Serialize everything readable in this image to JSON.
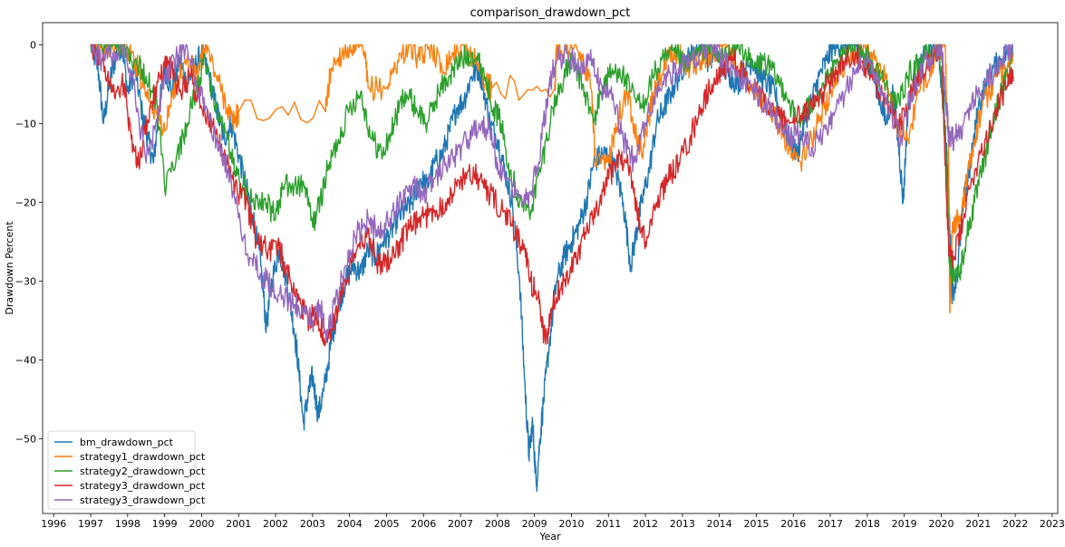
{
  "chart_data": {
    "type": "line",
    "title": "comparison_drawdown_pct",
    "xlabel": "Year",
    "ylabel": "Drawdown Percent",
    "xlim": [
      1995.7,
      2023.15
    ],
    "ylim": [
      -59.5,
      2.8
    ],
    "x_ticks": [
      "1996",
      "1997",
      "1998",
      "1999",
      "2000",
      "2001",
      "2002",
      "2003",
      "2004",
      "2005",
      "2006",
      "2007",
      "2008",
      "2009",
      "2010",
      "2011",
      "2012",
      "2013",
      "2014",
      "2015",
      "2016",
      "2017",
      "2018",
      "2019",
      "2020",
      "2021",
      "2022",
      "2023"
    ],
    "y_ticks": [
      "0",
      "−10",
      "−20",
      "−30",
      "−40",
      "−50"
    ],
    "legend_position": "lower-left",
    "grid": false,
    "series": [
      {
        "name": "bm_drawdown_pct",
        "color": "#1f77b4",
        "x": [
          1997.0,
          1997.2,
          1997.35,
          1997.5,
          1997.7,
          1997.85,
          1998.0,
          1998.2,
          1998.4,
          1998.55,
          1998.7,
          1998.85,
          1999.0,
          1999.2,
          1999.4,
          1999.6,
          1999.8,
          2000.0,
          2000.2,
          2000.4,
          2000.6,
          2000.8,
          2001.0,
          2001.2,
          2001.4,
          2001.6,
          2001.75,
          2001.9,
          2002.1,
          2002.3,
          2002.5,
          2002.6,
          2002.75,
          2002.9,
          2003.0,
          2003.15,
          2003.3,
          2003.5,
          2003.7,
          2003.9,
          2004.1,
          2004.3,
          2004.5,
          2004.7,
          2004.9,
          2005.1,
          2005.3,
          2005.5,
          2005.7,
          2005.9,
          2006.1,
          2006.3,
          2006.5,
          2006.7,
          2006.9,
          2007.1,
          2007.3,
          2007.5,
          2007.6,
          2007.8,
          2008.0,
          2008.2,
          2008.4,
          2008.6,
          2008.75,
          2008.85,
          2008.95,
          2009.05,
          2009.15,
          2009.25,
          2009.4,
          2009.6,
          2009.8,
          2010.0,
          2010.2,
          2010.4,
          2010.6,
          2010.8,
          2011.0,
          2011.2,
          2011.4,
          2011.6,
          2011.75,
          2011.9,
          2012.1,
          2012.3,
          2012.5,
          2012.7,
          2012.9,
          2013.1,
          2013.3,
          2013.5,
          2013.7,
          2013.9,
          2014.1,
          2014.3,
          2014.5,
          2014.7,
          2014.9,
          2015.1,
          2015.3,
          2015.5,
          2015.7,
          2015.9,
          2016.1,
          2016.3,
          2016.5,
          2016.7,
          2016.9,
          2017.1,
          2017.3,
          2017.5,
          2017.7,
          2017.9,
          2018.1,
          2018.3,
          2018.5,
          2018.7,
          2018.85,
          2018.97,
          2019.1,
          2019.3,
          2019.5,
          2019.7,
          2019.9,
          2020.05,
          2020.15,
          2020.22,
          2020.3,
          2020.45,
          2020.6,
          2020.8,
          2021.0,
          2021.2,
          2021.4,
          2021.6,
          2021.8,
          2021.95
        ],
        "y": [
          0,
          -3,
          -10,
          -5,
          -1,
          0,
          -6,
          -3,
          -9,
          -12,
          -15,
          -8,
          -3,
          -6,
          -2,
          -5,
          -3,
          -1,
          -4,
          -8,
          -12,
          -10,
          -14,
          -18,
          -22,
          -28,
          -36,
          -30,
          -26,
          -30,
          -36,
          -40,
          -48,
          -44,
          -42,
          -47,
          -44,
          -38,
          -33,
          -30,
          -28,
          -29,
          -26,
          -27,
          -25,
          -24,
          -22,
          -21,
          -20,
          -17,
          -18,
          -15,
          -14,
          -11,
          -8,
          -7,
          -4,
          -3,
          -5,
          -10,
          -12,
          -16,
          -20,
          -30,
          -44,
          -52,
          -48,
          -56,
          -50,
          -45,
          -38,
          -30,
          -27,
          -25,
          -23,
          -20,
          -15,
          -14,
          -14,
          -16,
          -20,
          -28,
          -24,
          -20,
          -16,
          -10,
          -8,
          -6,
          -4,
          -2,
          -1,
          0,
          -2,
          -1,
          -3,
          -4,
          -5,
          -3,
          -2,
          -4,
          -5,
          -6,
          -10,
          -12,
          -14,
          -10,
          -7,
          -4,
          -2,
          0,
          0,
          0,
          0,
          -2,
          -3,
          -6,
          -10,
          -6,
          -13,
          -20,
          -8,
          -4,
          -2,
          0,
          -1,
          -6,
          -14,
          -22,
          -32,
          -28,
          -20,
          -15,
          -8,
          -5,
          -3,
          -2,
          -1,
          0
        ]
      },
      {
        "name": "strategy1_drawdown_pct",
        "color": "#ff7f0e",
        "x": [
          1997.0,
          1997.3,
          1997.6,
          1997.9,
          1998.2,
          1998.5,
          1998.8,
          1999.0,
          1999.3,
          1999.6,
          1999.9,
          2000.1,
          2000.4,
          2000.7,
          2000.85,
          2001.0,
          2003.35,
          2003.5,
          2003.8,
          2004.1,
          2004.4,
          2004.5,
          2005.0,
          2005.3,
          2005.6,
          2005.9,
          2006.2,
          2006.5,
          2006.8,
          2007.1,
          2007.4,
          2007.7,
          2007.85,
          2009.55,
          2009.6,
          2009.8,
          2010.0,
          2010.3,
          2010.55,
          2010.65,
          2011.0,
          2011.2,
          2011.5,
          2011.7,
          2011.9,
          2012.1,
          2012.3,
          2012.6,
          2012.9,
          2013.2,
          2013.5,
          2013.8,
          2014.1,
          2014.4,
          2014.7,
          2015.0,
          2015.3,
          2015.6,
          2015.9,
          2016.2,
          2016.5,
          2016.75,
          2017.0,
          2017.3,
          2017.6,
          2017.9,
          2018.2,
          2018.5,
          2018.8,
          2019.1,
          2019.4,
          2019.7,
          2019.9,
          2020.1,
          2020.2,
          2020.23,
          2020.3,
          2020.5,
          2020.7,
          2020.9,
          2021.1,
          2021.4,
          2021.7,
          2021.95
        ],
        "y": [
          0,
          0,
          0,
          0,
          -2,
          -6,
          -9,
          -11,
          -5,
          -2,
          -4,
          0,
          -4,
          -8,
          -10,
          -8.5,
          -8.5,
          -3,
          -1,
          0,
          -1,
          -5.5,
          -5.5,
          -2,
          0,
          -2,
          0,
          -3,
          -1,
          0,
          -2,
          -5,
          -5.5,
          -5.5,
          0,
          -1,
          0,
          -2,
          -6,
          -15.5,
          -15,
          -10,
          -6,
          -10,
          -14,
          -9,
          -5,
          -2,
          -1,
          -3,
          -2,
          -1,
          0,
          -2,
          -4,
          -6,
          -8,
          -10,
          -13,
          -15,
          -12,
          -9,
          -6,
          -3,
          -1,
          0,
          -2,
          -4,
          -10,
          -12,
          -6,
          -3,
          -1,
          0,
          -14,
          -34,
          -22.5,
          -22.5,
          -17,
          -12,
          -8,
          -5,
          -3,
          -1
        ]
      },
      {
        "name": "strategy2_drawdown_pct",
        "color": "#2ca02c",
        "x": [
          1997.0,
          1997.3,
          1997.6,
          1997.9,
          1998.2,
          1998.5,
          1998.8,
          1999.0,
          1999.3,
          1999.6,
          1999.9,
          2000.1,
          2000.4,
          2000.7,
          2000.9,
          2001.1,
          2001.4,
          2001.7,
          2002.0,
          2002.2,
          2002.5,
          2002.8,
          2003.0,
          2003.2,
          2003.4,
          2003.7,
          2004.0,
          2004.3,
          2004.6,
          2004.9,
          2005.2,
          2005.5,
          2005.8,
          2006.1,
          2006.4,
          2006.7,
          2007.0,
          2007.3,
          2007.6,
          2007.9,
          2008.1,
          2008.3,
          2008.6,
          2008.9,
          2009.2,
          2009.5,
          2009.8,
          2010.0,
          2010.3,
          2010.6,
          2010.8,
          2011.0,
          2011.3,
          2011.6,
          2011.9,
          2012.2,
          2012.5,
          2012.8,
          2013.1,
          2013.4,
          2013.7,
          2014.0,
          2014.3,
          2014.6,
          2014.9,
          2015.2,
          2015.5,
          2015.8,
          2016.1,
          2016.4,
          2016.7,
          2017.0,
          2017.3,
          2017.6,
          2017.9,
          2018.2,
          2018.5,
          2018.8,
          2019.1,
          2019.4,
          2019.7,
          2019.95,
          2020.15,
          2020.22,
          2020.3,
          2020.5,
          2020.7,
          2020.9,
          2021.1,
          2021.3,
          2021.5,
          2021.7,
          2021.9
        ],
        "y": [
          0,
          0,
          0,
          0,
          -2,
          -4,
          -8,
          -18,
          -15,
          -10,
          -5,
          -2,
          -8,
          -12,
          -16,
          -18,
          -19.5,
          -19.5,
          -22,
          -18,
          -18,
          -18,
          -23,
          -20,
          -16,
          -12,
          -8,
          -6,
          -12,
          -14,
          -10,
          -6,
          -8,
          -10,
          -6,
          -4,
          -2,
          -1,
          -3,
          -8,
          -10,
          -15,
          -20,
          -21,
          -15,
          -8,
          -4,
          -2,
          -5,
          -10,
          -6,
          -4,
          -3,
          -6,
          -8,
          -4,
          -2,
          -1,
          -3,
          -1,
          0,
          -2,
          -1,
          0,
          -3,
          -2,
          -4,
          -6,
          -10,
          -8,
          -6,
          -4,
          -2,
          0,
          -1,
          -3,
          -5,
          -8,
          -4,
          -2,
          -1,
          0,
          -16,
          -27,
          -29,
          -29,
          -24,
          -20,
          -16,
          -12,
          -8,
          -5,
          -2
        ]
      },
      {
        "name": "strategy3_drawdown_pct",
        "color": "#d62728",
        "x": [
          1997.0,
          1997.3,
          1997.6,
          1997.9,
          1998.1,
          1998.3,
          1998.6,
          1998.9,
          1999.1,
          1999.4,
          1999.7,
          2000.0,
          2000.3,
          2000.6,
          2000.9,
          2001.2,
          2001.5,
          2001.8,
          2002.1,
          2002.4,
          2002.7,
          2002.9,
          2003.1,
          2003.35,
          2003.6,
          2003.9,
          2004.2,
          2004.5,
          2004.8,
          2005.1,
          2005.4,
          2005.7,
          2006.0,
          2006.3,
          2006.6,
          2006.9,
          2007.2,
          2007.5,
          2007.8,
          2008.1,
          2008.4,
          2008.7,
          2008.9,
          2009.1,
          2009.3,
          2009.5,
          2009.8,
          2010.1,
          2010.4,
          2010.7,
          2011.0,
          2011.3,
          2011.6,
          2011.8,
          2012.0,
          2012.3,
          2012.6,
          2012.9,
          2013.2,
          2013.5,
          2013.8,
          2014.1,
          2014.4,
          2014.7,
          2015.0,
          2015.3,
          2015.6,
          2015.9,
          2016.2,
          2016.5,
          2016.8,
          2017.1,
          2017.4,
          2017.7,
          2018.0,
          2018.3,
          2018.6,
          2018.9,
          2019.2,
          2019.5,
          2019.8,
          2020.0,
          2020.15,
          2020.22,
          2020.35,
          2020.6,
          2020.9,
          2021.2,
          2021.5,
          2021.8,
          2021.95
        ],
        "y": [
          0,
          -2,
          -6,
          -5,
          -12,
          -15,
          -8,
          -4,
          -2,
          -6,
          -4,
          -8,
          -10,
          -14,
          -18,
          -20,
          -25,
          -26,
          -26,
          -30,
          -33,
          -35,
          -34,
          -38,
          -35,
          -30,
          -26,
          -24,
          -28,
          -27,
          -25,
          -23,
          -22,
          -21,
          -20,
          -18,
          -16,
          -17,
          -19,
          -21,
          -23,
          -26,
          -30,
          -32,
          -38,
          -33,
          -30,
          -27,
          -24,
          -21,
          -17,
          -14,
          -16,
          -22,
          -25,
          -20,
          -17,
          -15,
          -12,
          -8,
          -5,
          -3,
          -2,
          -4,
          -6,
          -8,
          -9,
          -10,
          -9,
          -8,
          -6,
          -4,
          -2,
          -1,
          -3,
          -6,
          -8,
          -10,
          -6,
          -3,
          -1,
          0,
          -20,
          -27,
          -27,
          -22,
          -16,
          -12,
          -8,
          -5,
          -4
        ]
      },
      {
        "name": "strategy3_drawdown_pct",
        "color": "#9467bd",
        "x": [
          1997.0,
          1997.3,
          1997.6,
          1997.9,
          1998.2,
          1998.5,
          1998.8,
          1999.0,
          1999.3,
          1999.6,
          1999.9,
          2000.1,
          2000.4,
          2000.7,
          2001.0,
          2001.3,
          2001.6,
          2001.9,
          2002.2,
          2002.5,
          2002.8,
          2003.0,
          2003.2,
          2003.4,
          2003.6,
          2003.9,
          2004.2,
          2004.5,
          2004.8,
          2005.1,
          2005.4,
          2005.7,
          2006.0,
          2006.3,
          2006.6,
          2006.9,
          2007.2,
          2007.5,
          2007.8,
          2008.0,
          2008.3,
          2008.6,
          2008.9,
          2009.2,
          2009.4,
          2009.6,
          2009.9,
          2010.2,
          2010.5,
          2010.8,
          2011.1,
          2011.4,
          2011.7,
          2012.0,
          2012.3,
          2012.6,
          2012.9,
          2013.2,
          2013.5,
          2013.8,
          2014.1,
          2014.4,
          2014.7,
          2015.0,
          2015.3,
          2015.6,
          2015.9,
          2016.2,
          2016.5,
          2016.8,
          2017.1,
          2017.4,
          2017.7,
          2018.0,
          2018.3,
          2018.6,
          2018.9,
          2019.2,
          2019.5,
          2019.8,
          2020.0,
          2020.15,
          2020.22,
          2020.35,
          2020.6,
          2020.9,
          2021.2,
          2021.5,
          2021.8,
          2021.95
        ],
        "y": [
          0,
          -2,
          -1,
          0,
          -6,
          -15,
          -10,
          -4,
          -2,
          0,
          -6,
          -8,
          -12,
          -16,
          -22,
          -27,
          -29,
          -31,
          -32,
          -33,
          -34,
          -35,
          -33,
          -37,
          -33,
          -28,
          -24,
          -22,
          -24,
          -22,
          -20,
          -18,
          -19,
          -17,
          -15,
          -14,
          -12,
          -10,
          -11,
          -15,
          -17,
          -19,
          -19,
          -12,
          -5,
          -2,
          -1,
          -3,
          -2,
          -5,
          -7,
          -12,
          -15,
          -10,
          -6,
          -4,
          -3,
          -2,
          -1,
          0,
          -2,
          -3,
          -5,
          -6,
          -8,
          -10,
          -12,
          -11,
          -13,
          -11,
          -9,
          -6,
          -3,
          -1,
          -5,
          -8,
          -12,
          -6,
          -3,
          -1,
          0,
          -8,
          -12,
          -12,
          -10,
          -7,
          -5,
          -3,
          -1,
          0
        ]
      }
    ]
  }
}
